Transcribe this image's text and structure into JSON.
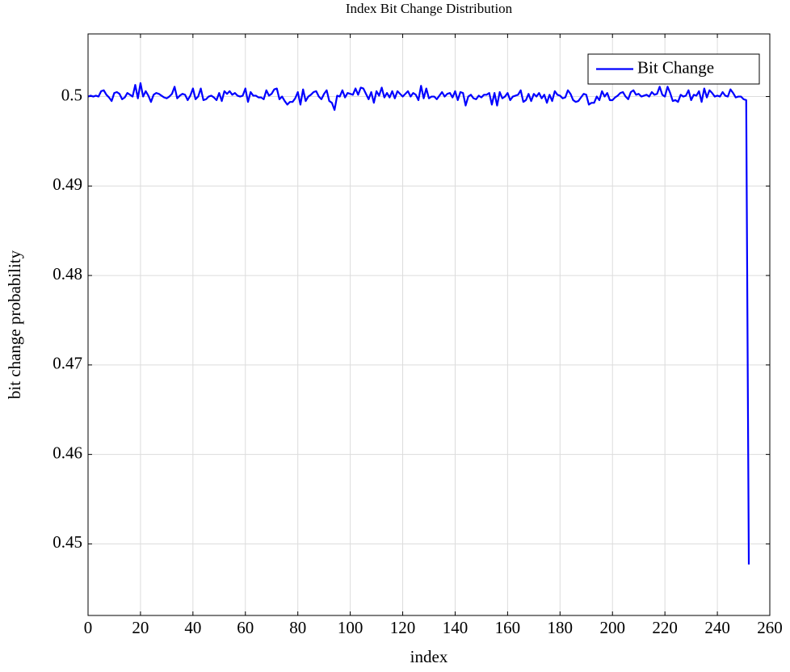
{
  "chart_data": {
    "type": "line",
    "title": "Index Bit Change Distribution",
    "x_label": "index",
    "y_label": "bit change probability",
    "xlim": [
      0,
      260
    ],
    "ylim": [
      0.442,
      0.507
    ],
    "xticks": [
      0,
      20,
      40,
      60,
      80,
      100,
      120,
      140,
      160,
      180,
      200,
      220,
      240,
      260
    ],
    "yticks": [
      0.45,
      0.46,
      0.47,
      0.48,
      0.49,
      0.5
    ],
    "grid": true,
    "legend_position": "upper-right",
    "x": [
      0,
      1,
      2,
      3,
      4,
      5,
      6,
      7,
      8,
      9,
      10,
      11,
      12,
      13,
      14,
      15,
      16,
      17,
      18,
      19,
      20,
      21,
      22,
      23,
      24,
      25,
      26,
      27,
      28,
      29,
      30,
      31,
      32,
      33,
      34,
      35,
      36,
      37,
      38,
      39,
      40,
      41,
      42,
      43,
      44,
      45,
      46,
      47,
      48,
      49,
      50,
      51,
      52,
      53,
      54,
      55,
      56,
      57,
      58,
      59,
      60,
      61,
      62,
      63,
      64,
      65,
      66,
      67,
      68,
      69,
      70,
      71,
      72,
      73,
      74,
      75,
      76,
      77,
      78,
      79,
      80,
      81,
      82,
      83,
      84,
      85,
      86,
      87,
      88,
      89,
      90,
      91,
      92,
      93,
      94,
      95,
      96,
      97,
      98,
      99,
      100,
      101,
      102,
      103,
      104,
      105,
      106,
      107,
      108,
      109,
      110,
      111,
      112,
      113,
      114,
      115,
      116,
      117,
      118,
      119,
      120,
      121,
      122,
      123,
      124,
      125,
      126,
      127,
      128,
      129,
      130,
      131,
      132,
      133,
      134,
      135,
      136,
      137,
      138,
      139,
      140,
      141,
      142,
      143,
      144,
      145,
      146,
      147,
      148,
      149,
      150,
      151,
      152,
      153,
      154,
      155,
      156,
      157,
      158,
      159,
      160,
      161,
      162,
      163,
      164,
      165,
      166,
      167,
      168,
      169,
      170,
      171,
      172,
      173,
      174,
      175,
      176,
      177,
      178,
      179,
      180,
      181,
      182,
      183,
      184,
      185,
      186,
      187,
      188,
      189,
      190,
      191,
      192,
      193,
      194,
      195,
      196,
      197,
      198,
      199,
      200,
      201,
      202,
      203,
      204,
      205,
      206,
      207,
      208,
      209,
      210,
      211,
      212,
      213,
      214,
      215,
      216,
      217,
      218,
      219,
      220,
      221,
      222,
      223,
      224,
      225,
      226,
      227,
      228,
      229,
      230,
      231,
      232,
      233,
      234,
      235,
      236,
      237,
      238,
      239,
      240,
      241,
      242,
      243,
      244,
      245,
      246,
      247,
      248,
      249,
      250,
      251,
      252
    ],
    "series": [
      {
        "name": "Bit Change",
        "color": "#0000ff",
        "values": [
          0.5,
          0.5001,
          0.5,
          0.5001,
          0.5,
          0.5006,
          0.5007,
          0.5002,
          0.4999,
          0.4995,
          0.5004,
          0.5005,
          0.5003,
          0.4997,
          0.4999,
          0.5004,
          0.5002,
          0.5,
          0.5013,
          0.4998,
          0.5015,
          0.5,
          0.5006,
          0.5001,
          0.4994,
          0.5002,
          0.5004,
          0.5003,
          0.5001,
          0.4999,
          0.4998,
          0.5,
          0.5003,
          0.5011,
          0.4998,
          0.5001,
          0.5003,
          0.5002,
          0.4996,
          0.5001,
          0.5009,
          0.4997,
          0.5,
          0.5009,
          0.4996,
          0.4997,
          0.5,
          0.5001,
          0.4999,
          0.4996,
          0.5004,
          0.4995,
          0.5006,
          0.5003,
          0.5006,
          0.5002,
          0.5004,
          0.5001,
          0.5,
          0.5001,
          0.5009,
          0.4994,
          0.5005,
          0.5001,
          0.5001,
          0.4999,
          0.4999,
          0.4997,
          0.5007,
          0.5001,
          0.5003,
          0.5008,
          0.5009,
          0.4997,
          0.5,
          0.4995,
          0.4991,
          0.4994,
          0.4994,
          0.4998,
          0.5005,
          0.4991,
          0.5008,
          0.4995,
          0.5,
          0.5002,
          0.5005,
          0.5006,
          0.5,
          0.4997,
          0.5003,
          0.5007,
          0.4995,
          0.4993,
          0.4985,
          0.5001,
          0.5,
          0.5007,
          0.4999,
          0.5004,
          0.5003,
          0.5002,
          0.5009,
          0.5002,
          0.501,
          0.5009,
          0.5003,
          0.4997,
          0.5005,
          0.4993,
          0.5006,
          0.5001,
          0.501,
          0.4999,
          0.5004,
          0.4999,
          0.5006,
          0.4998,
          0.5006,
          0.5003,
          0.5,
          0.5003,
          0.5006,
          0.5,
          0.5004,
          0.5002,
          0.4996,
          0.5012,
          0.4998,
          0.5009,
          0.4998,
          0.5,
          0.5,
          0.4997,
          0.5001,
          0.5005,
          0.5,
          0.5003,
          0.5004,
          0.4999,
          0.5006,
          0.4996,
          0.5005,
          0.5004,
          0.499,
          0.5,
          0.5002,
          0.4998,
          0.4997,
          0.5001,
          0.4999,
          0.5002,
          0.5002,
          0.5004,
          0.4991,
          0.5004,
          0.499,
          0.5005,
          0.4998,
          0.5,
          0.5004,
          0.4996,
          0.5,
          0.5001,
          0.5002,
          0.5007,
          0.4994,
          0.4996,
          0.5003,
          0.4995,
          0.5003,
          0.5,
          0.5004,
          0.4998,
          0.5002,
          0.4993,
          0.5002,
          0.4995,
          0.5006,
          0.5002,
          0.5001,
          0.4998,
          0.4999,
          0.5007,
          0.5003,
          0.4996,
          0.4994,
          0.4995,
          0.4999,
          0.5003,
          0.5002,
          0.4991,
          0.4993,
          0.4993,
          0.5,
          0.4996,
          0.5006,
          0.5,
          0.5004,
          0.4996,
          0.4996,
          0.4999,
          0.5001,
          0.5004,
          0.5005,
          0.5,
          0.4997,
          0.5005,
          0.5007,
          0.5002,
          0.5003,
          0.5,
          0.5001,
          0.5002,
          0.5,
          0.5005,
          0.5002,
          0.5003,
          0.5011,
          0.5002,
          0.5,
          0.5011,
          0.5004,
          0.4995,
          0.4996,
          0.4994,
          0.5002,
          0.5,
          0.5001,
          0.5007,
          0.4996,
          0.5002,
          0.5001,
          0.5006,
          0.4994,
          0.5009,
          0.4999,
          0.5007,
          0.5004,
          0.5,
          0.5001,
          0.5,
          0.5005,
          0.5001,
          0.5,
          0.5008,
          0.5004,
          0.4999,
          0.5,
          0.5,
          0.4997,
          0.4996,
          0.4477
        ]
      }
    ]
  }
}
